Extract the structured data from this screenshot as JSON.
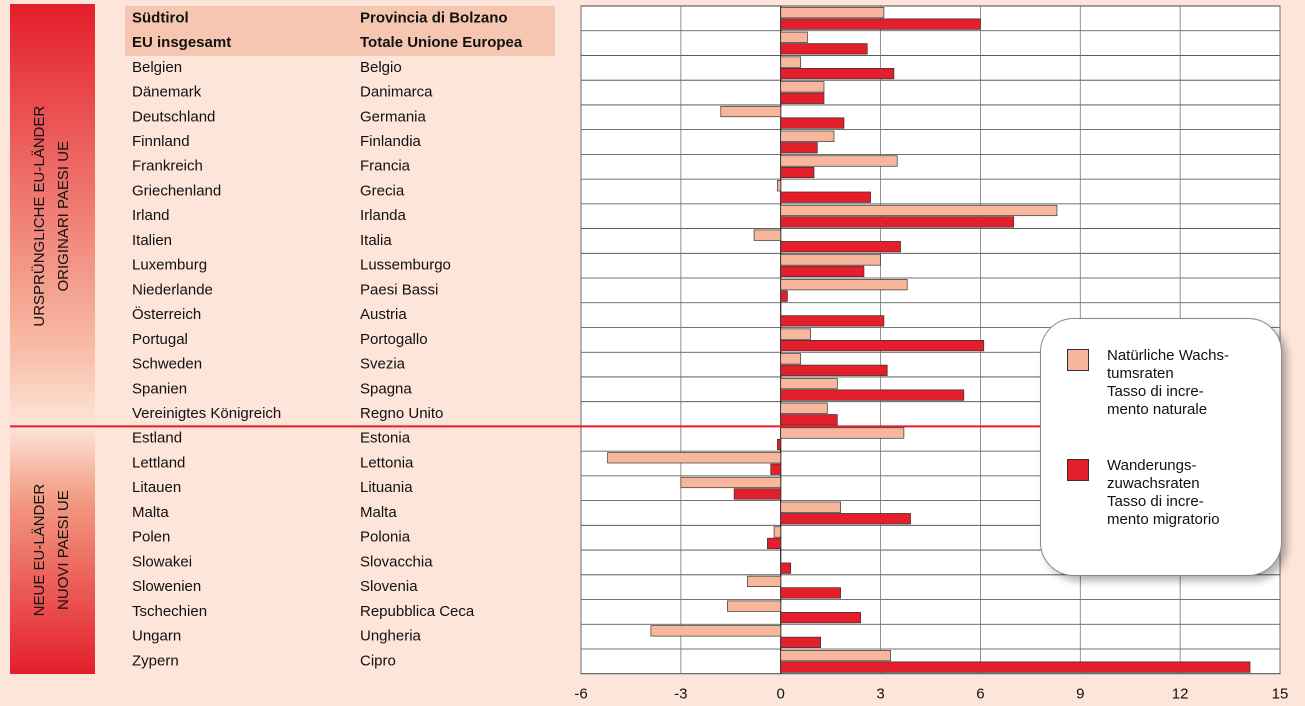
{
  "chart_data": {
    "type": "barh",
    "groups": [
      [
        "URSPRÜNGLICHE EU-LÄNDER",
        "ORIGINARI PAESI UE"
      ],
      [
        "NEUE EU-LÄNDER",
        "NUOVI PAESI UE"
      ]
    ],
    "categories": [
      "Südtirol",
      "EU insgesamt",
      "Belgien",
      "Dänemark",
      "Deutschland",
      "Finnland",
      "Frankreich",
      "Griechenland",
      "Irland",
      "Italien",
      "Luxemburg",
      "Niederlande",
      "Österreich",
      "Portugal",
      "Schweden",
      "Spanien",
      "Vereinigtes Königreich",
      "Estland",
      "Lettland",
      "Litauen",
      "Malta",
      "Polen",
      "Slowakei",
      "Slowenien",
      "Tschechien",
      "Ungarn",
      "Zypern"
    ],
    "categories_it": [
      "Provincia di Bolzano",
      "Totale Unione Europea",
      "Belgio",
      "Danimarca",
      "Germania",
      "Finlandia",
      "Francia",
      "Grecia",
      "Irlanda",
      "Italia",
      "Lussemburgo",
      "Paesi Bassi",
      "Austria",
      "Portogallo",
      "Svezia",
      "Spagna",
      "Regno Unito",
      "Estonia",
      "Lettonia",
      "Lituania",
      "Malta",
      "Polonia",
      "Slovacchia",
      "Slovenia",
      "Repubblica Ceca",
      "Ungheria",
      "Cipro"
    ],
    "series": [
      {
        "name": "Natürliche Wachs-\ntumsraten\nTasso di incre-\nmento naturale",
        "color": "#f8b79c",
        "values": [
          3.1,
          0.8,
          0.6,
          1.3,
          -1.8,
          1.6,
          3.5,
          -0.1,
          8.3,
          -0.8,
          3.0,
          3.8,
          0,
          0.9,
          0.6,
          1.7,
          1.4,
          3.7,
          -5.2,
          -3.0,
          1.8,
          -0.2,
          0,
          -1.0,
          -1.6,
          -3.9,
          3.3
        ]
      },
      {
        "name": "Wanderungs-\nzuwachsraten\nTasso di incre-\nmento migratorio",
        "color": "#e41e2b",
        "values": [
          6.0,
          2.6,
          3.4,
          1.3,
          1.9,
          1.1,
          1.0,
          2.7,
          7.0,
          3.6,
          2.5,
          0.2,
          3.1,
          6.1,
          3.2,
          5.5,
          1.7,
          -0.1,
          -0.3,
          -1.4,
          3.9,
          -0.4,
          0.3,
          1.8,
          2.4,
          1.2,
          14.1
        ]
      }
    ],
    "xlim": [
      -6,
      15
    ],
    "xticks": [
      -6,
      -3,
      0,
      3,
      6,
      9,
      12,
      15
    ],
    "grid": true
  }
}
